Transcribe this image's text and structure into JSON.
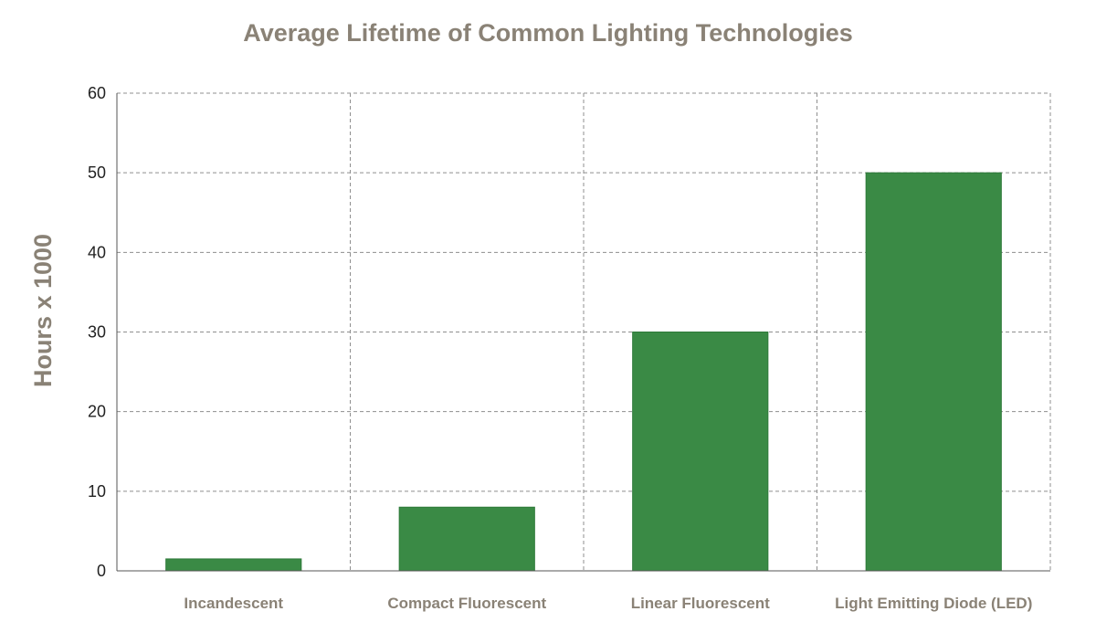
{
  "chart_data": {
    "type": "bar",
    "title": "Average Lifetime of Common Lighting Technologies",
    "xlabel": "",
    "ylabel": "Hours x 1000",
    "categories": [
      "Incandescent",
      "Compact Fluorescent",
      "Linear Fluorescent",
      "Light Emitting Diode (LED)"
    ],
    "values": [
      1.5,
      8,
      30,
      50
    ],
    "ylim": [
      0,
      60
    ],
    "yticks": [
      0,
      10,
      20,
      30,
      40,
      50,
      60
    ],
    "grid": true,
    "grid_style": "dashed",
    "legend": "none"
  },
  "colors": {
    "bar": "#3a8a45",
    "bar_edge": "#2f7a3a",
    "title": "#8a8276",
    "axis_label": "#8a8276",
    "category_label": "#8a8276",
    "grid": "#8f8f8f",
    "axis": "#555555",
    "tick_label": "#222222"
  }
}
